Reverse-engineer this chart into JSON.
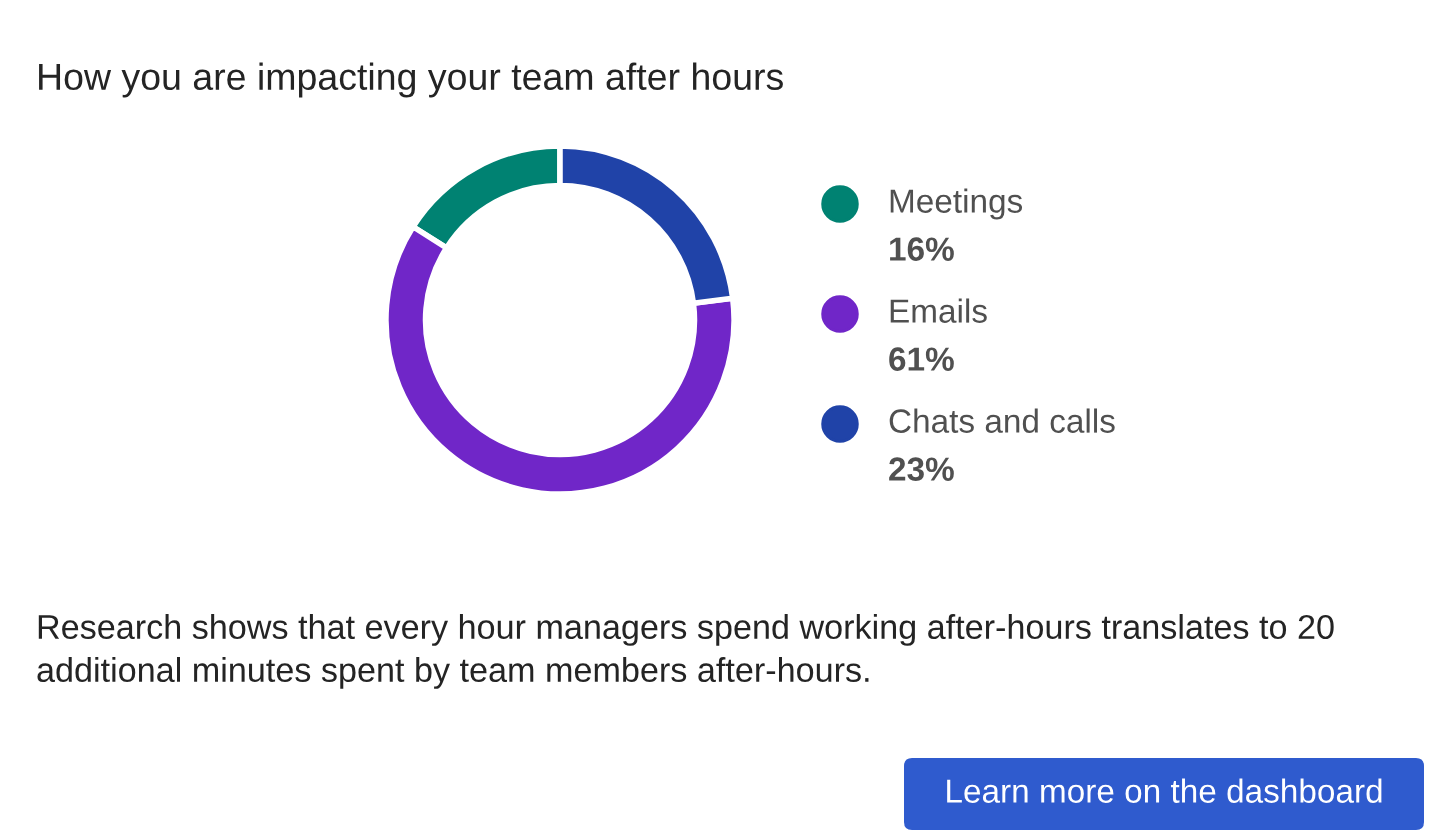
{
  "chart_data": {
    "type": "donut",
    "title": "How you are impacting your team after hours",
    "categories": [
      "Meetings",
      "Emails",
      "Chats and calls"
    ],
    "values": [
      16,
      61,
      23
    ],
    "colors": [
      "#008272",
      "#7026c8",
      "#2043a8"
    ],
    "value_labels": [
      "16%",
      "61%",
      "23%"
    ],
    "legend": "right",
    "annotations": [
      "Research shows that every hour managers spend working after-hours translates to 20 additional minutes spent by team members after-hours.",
      "Learn more on the dashboard"
    ]
  }
}
